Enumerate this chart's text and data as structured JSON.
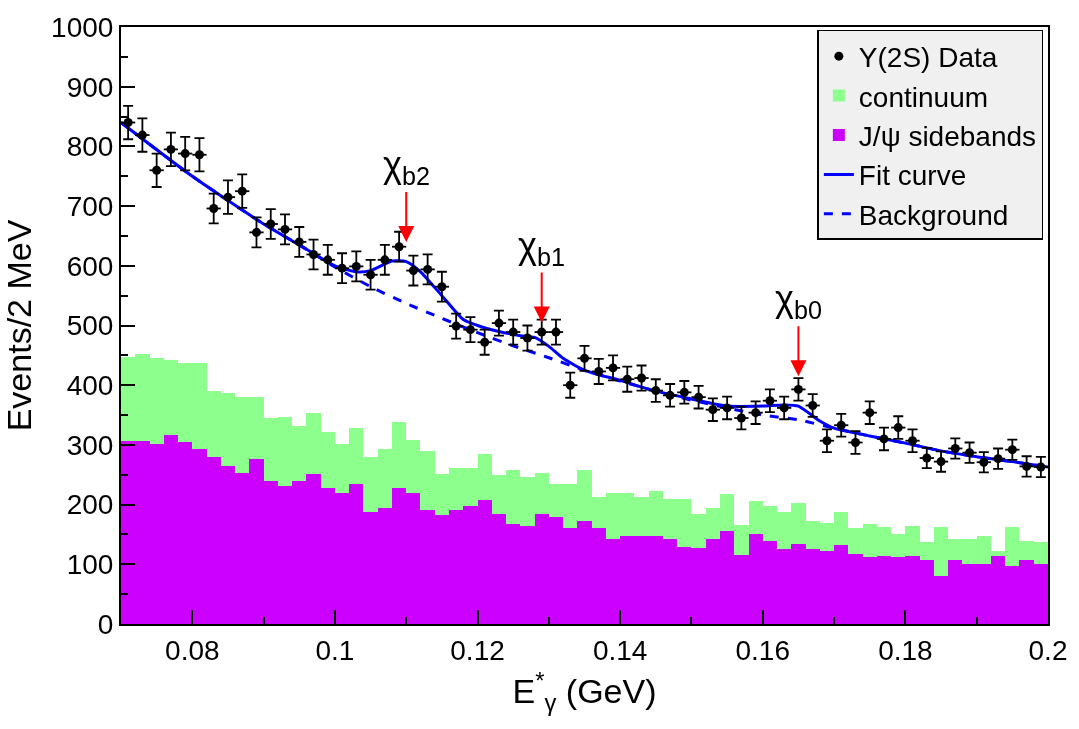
{
  "chart_data": {
    "type": "bar",
    "xlabel": "E$^{*}$$_{γ}$ (GeV)",
    "ylabel": "Events/2 MeV",
    "xlim": [
      0.07,
      0.2
    ],
    "xticks": [
      0.08,
      0.1,
      0.12,
      0.14,
      0.16,
      0.18,
      0.2
    ],
    "ylim": [
      0,
      1000
    ],
    "yticks": [
      0,
      100,
      200,
      300,
      400,
      500,
      600,
      700,
      800,
      900,
      1000
    ],
    "legend": "top right",
    "stacked": true,
    "x": [
      0.071,
      0.073,
      0.075,
      0.077,
      0.079,
      0.081,
      0.083,
      0.085,
      0.087,
      0.089,
      0.091,
      0.093,
      0.095,
      0.097,
      0.099,
      0.101,
      0.103,
      0.105,
      0.107,
      0.109,
      0.111,
      0.113,
      0.115,
      0.117,
      0.119,
      0.121,
      0.123,
      0.125,
      0.127,
      0.129,
      0.131,
      0.133,
      0.135,
      0.137,
      0.139,
      0.141,
      0.143,
      0.145,
      0.147,
      0.149,
      0.151,
      0.153,
      0.155,
      0.157,
      0.159,
      0.161,
      0.163,
      0.165,
      0.167,
      0.169,
      0.171,
      0.173,
      0.175,
      0.177,
      0.179,
      0.181,
      0.183,
      0.185,
      0.187,
      0.189,
      0.191,
      0.193,
      0.195,
      0.197,
      0.199
    ],
    "series": [
      {
        "name": "Υ(2S) Data",
        "type": "scatter",
        "color": "#000000",
        "marker": "circle",
        "x": [
          0.071,
          0.073,
          0.075,
          0.077,
          0.079,
          0.081,
          0.083,
          0.085,
          0.087,
          0.089,
          0.091,
          0.093,
          0.095,
          0.097,
          0.099,
          0.101,
          0.103,
          0.105,
          0.107,
          0.109,
          0.111,
          0.113,
          0.115,
          0.117,
          0.119,
          0.121,
          0.123,
          0.125,
          0.127,
          0.129,
          0.131,
          0.133,
          0.135,
          0.137,
          0.139,
          0.141,
          0.143,
          0.145,
          0.147,
          0.149,
          0.151,
          0.153,
          0.155,
          0.157,
          0.159,
          0.161,
          0.163,
          0.165,
          0.167,
          0.169,
          0.171,
          0.173,
          0.175,
          0.177,
          0.179,
          0.181,
          0.183,
          0.185,
          0.187,
          0.189,
          0.191,
          0.193,
          0.195,
          0.197,
          0.199
        ],
        "values": [
          840,
          819,
          760,
          795,
          788,
          786,
          696,
          715,
          725,
          656,
          670,
          661,
          640,
          619,
          610,
          596,
          599,
          585,
          610,
          632,
          592,
          594,
          565,
          499,
          493,
          472,
          504,
          489,
          479,
          489,
          489,
          400,
          445,
          423,
          429,
          410,
          412,
          391,
          383,
          388,
          380,
          359,
          362,
          345,
          354,
          374,
          362,
          393,
          366,
          307,
          333,
          304,
          354,
          310,
          329,
          307,
          278,
          272,
          294,
          287,
          271,
          277,
          292,
          264,
          263
        ],
        "errors": [
          28,
          28,
          28,
          28,
          28,
          28,
          25,
          28,
          28,
          25,
          25,
          25,
          25,
          25,
          25,
          25,
          25,
          25,
          25,
          25,
          25,
          25,
          25,
          21,
          21,
          21,
          21,
          21,
          21,
          21,
          21,
          21,
          21,
          21,
          21,
          21,
          21,
          19,
          19,
          19,
          19,
          19,
          19,
          19,
          19,
          19,
          19,
          19,
          19,
          19,
          19,
          19,
          19,
          19,
          19,
          19,
          17,
          17,
          17,
          17,
          17,
          17,
          17,
          17,
          17
        ],
        "xerrors": [
          0.001,
          0.001,
          0.001,
          0.001,
          0.001,
          0.001,
          0.001,
          0.001,
          0.001,
          0.001,
          0.001,
          0.001,
          0.001,
          0.001,
          0.001,
          0.001,
          0.001,
          0.001,
          0.001,
          0.001,
          0.001,
          0.001,
          0.001,
          0.001,
          0.001,
          0.001,
          0.001,
          0.001,
          0.001,
          0.001,
          0.001,
          0.001,
          0.001,
          0.001,
          0.001,
          0.001,
          0.001,
          0.001,
          0.001,
          0.001,
          0.001,
          0.001,
          0.001,
          0.001,
          0.001,
          0.001,
          0.001,
          0.001,
          0.001,
          0.001,
          0.001,
          0.001,
          0.001,
          0.001,
          0.001,
          0.001,
          0.001,
          0.001,
          0.001,
          0.001,
          0.001,
          0.001,
          0.001,
          0.001,
          0.001
        ]
      },
      {
        "name": "J/ψ sidebands",
        "color": "#cc00ff",
        "values": [
          306,
          306,
          302,
          317,
          305,
          293,
          279,
          264,
          253,
          277,
          240,
          231,
          240,
          252,
          228,
          220,
          234,
          188,
          195,
          228,
          220,
          191,
          183,
          191,
          197,
          207,
          185,
          168,
          165,
          185,
          180,
          161,
          172,
          161,
          142,
          148,
          148,
          148,
          142,
          129,
          128,
          142,
          156,
          115,
          151,
          139,
          126,
          134,
          126,
          123,
          132,
          118,
          112,
          114,
          112,
          114,
          107,
          81,
          107,
          101,
          101,
          114,
          97,
          107,
          101
        ]
      },
      {
        "name": "continuum",
        "color": "#8cff8c",
        "values": [
          142,
          146,
          144,
          126,
          132,
          144,
          112,
          123,
          128,
          104,
          105,
          116,
          92,
          102,
          94,
          82,
          94,
          92,
          98,
          110,
          88,
          99,
          69,
          70,
          64,
          77,
          64,
          90,
          81,
          68,
          55,
          74,
          86,
          51,
          78,
          72,
          64,
          75,
          67,
          80,
          57,
          52,
          61,
          51,
          55,
          58,
          61,
          69,
          46,
          47,
          55,
          43,
          56,
          48,
          39,
          51,
          30,
          81,
          35,
          41,
          46,
          8,
          65,
          32,
          36
        ]
      },
      {
        "name": "Fit curve",
        "type": "line",
        "color": "#0000ff",
        "line_style": "solid",
        "x": [
          0.07,
          0.08,
          0.09,
          0.095,
          0.1,
          0.103,
          0.105,
          0.108,
          0.11,
          0.112,
          0.115,
          0.118,
          0.12,
          0.123,
          0.126,
          0.128,
          0.13,
          0.132,
          0.135,
          0.14,
          0.145,
          0.15,
          0.155,
          0.16,
          0.163,
          0.165,
          0.168,
          0.17,
          0.175,
          0.18,
          0.185,
          0.19,
          0.195,
          0.2
        ],
        "values": [
          840,
          750,
          670,
          635,
          600,
          590,
          592,
          608,
          607,
          590,
          550,
          510,
          500,
          490,
          483,
          480,
          465,
          445,
          425,
          408,
          390,
          377,
          365,
          365,
          367,
          365,
          340,
          328,
          315,
          303,
          290,
          280,
          272,
          263
        ]
      },
      {
        "name": "Background",
        "type": "line",
        "color": "#0000ff",
        "line_style": "dashed",
        "x": [
          0.07,
          0.08,
          0.09,
          0.095,
          0.1,
          0.105,
          0.11,
          0.115,
          0.12,
          0.125,
          0.13,
          0.135,
          0.14,
          0.145,
          0.15,
          0.155,
          0.16,
          0.165,
          0.17,
          0.175,
          0.18,
          0.185,
          0.19,
          0.195,
          0.2
        ],
        "values": [
          840,
          750,
          670,
          635,
          598,
          565,
          537,
          512,
          488,
          466,
          446,
          425,
          407,
          390,
          375,
          362,
          350,
          342,
          328,
          315,
          303,
          290,
          280,
          272,
          263
        ]
      }
    ],
    "annotations": [
      {
        "text": "χ$_{b2}$",
        "x": 0.11,
        "y": 640
      },
      {
        "text": "χ$_{b1}$",
        "x": 0.129,
        "y": 505
      },
      {
        "text": "χ$_{b0}$",
        "x": 0.165,
        "y": 415
      }
    ]
  }
}
